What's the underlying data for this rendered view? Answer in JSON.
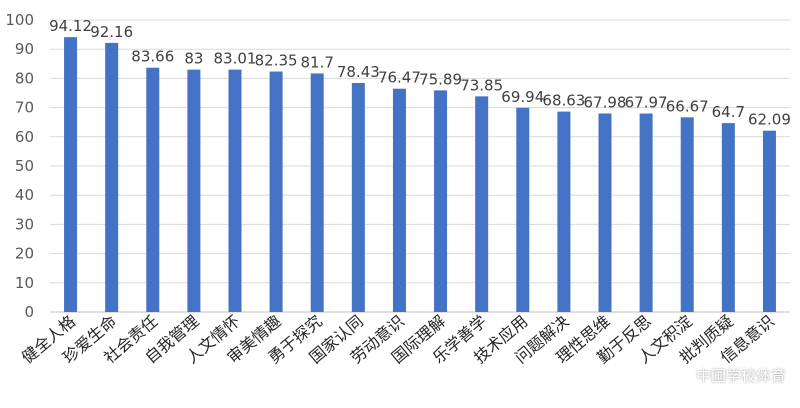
{
  "chart_data": {
    "type": "bar",
    "categories": [
      "健全人格",
      "珍爱生命",
      "社会责任",
      "自我管理",
      "人文情怀",
      "审美情趣",
      "勇于探究",
      "国家认同",
      "劳动意识",
      "国际理解",
      "乐学善学",
      "技术应用",
      "问题解决",
      "理性思维",
      "勤于反思",
      "人文积淀",
      "批判质疑",
      "信息意识"
    ],
    "values": [
      94.12,
      92.16,
      83.66,
      83,
      83.01,
      82.35,
      81.7,
      78.43,
      76.47,
      75.89,
      73.85,
      69.94,
      68.63,
      67.98,
      67.97,
      66.67,
      64.7,
      62.09
    ],
    "value_labels": [
      "94.12",
      "92.16",
      "83.66",
      "83",
      "83.01",
      "82.35",
      "81.7",
      "78.43",
      "76.47",
      "75.89",
      "73.85",
      "69.94",
      "68.63",
      "67.98",
      "67.97",
      "66.67",
      "64.7",
      "62.09"
    ],
    "ylim": [
      0,
      100
    ],
    "yticks": [
      0,
      10,
      20,
      30,
      40,
      50,
      60,
      70,
      80,
      90,
      100
    ],
    "grid": true,
    "legend": "none",
    "bar_color": "#4472c4"
  },
  "watermark": {
    "text": "中国学校体育",
    "icon": "wechat-icon"
  }
}
